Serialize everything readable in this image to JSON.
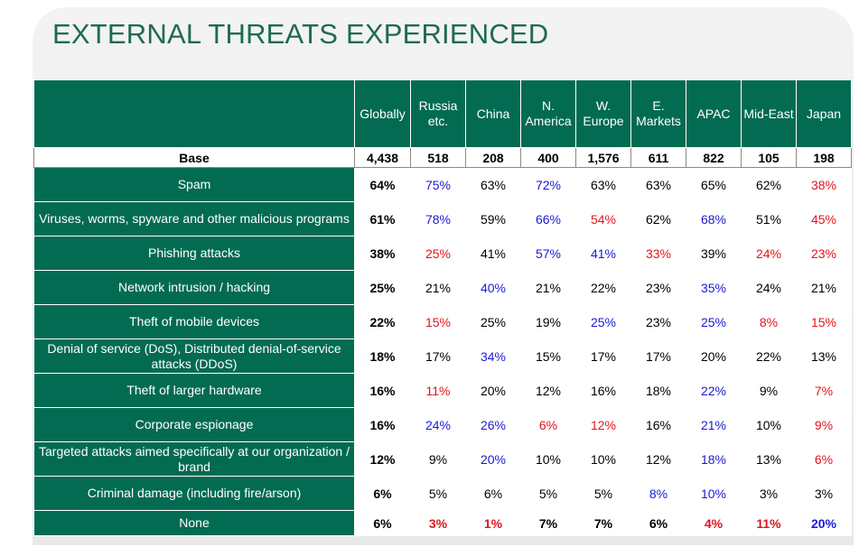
{
  "title": "EXTERNAL THREATS EXPERIENCED",
  "columns": [
    "Globally",
    "Russia etc.",
    "China",
    "N. America",
    "W. Europe",
    "E. Markets",
    "APAC",
    "Mid-East",
    "Japan"
  ],
  "base": {
    "label": "Base",
    "values": [
      "4,438",
      "518",
      "208",
      "400",
      "1,576",
      "611",
      "822",
      "105",
      "198"
    ]
  },
  "colors": {
    "header_green": "#036b52",
    "title_green": "#1f6b4c",
    "higher": "#1a1ad4",
    "lower": "#e3141b"
  },
  "chart_data": {
    "type": "table",
    "title": "EXTERNAL THREATS EXPERIENCED",
    "columns": [
      "Globally",
      "Russia etc.",
      "China",
      "N. America",
      "W. Europe",
      "E. Markets",
      "APAC",
      "Mid-East",
      "Japan"
    ],
    "base": [
      "4,438",
      "518",
      "208",
      "400",
      "1,576",
      "611",
      "822",
      "105",
      "198"
    ],
    "rows": [
      {
        "label": "Spam",
        "values": [
          "64%",
          "75%",
          "63%",
          "72%",
          "63%",
          "63%",
          "65%",
          "62%",
          "38%"
        ],
        "flags": [
          "",
          "hi",
          "",
          "hi",
          "",
          "",
          "",
          "",
          "lo"
        ]
      },
      {
        "label": "Viruses, worms, spyware and other malicious programs",
        "values": [
          "61%",
          "78%",
          "59%",
          "66%",
          "54%",
          "62%",
          "68%",
          "51%",
          "45%"
        ],
        "flags": [
          "",
          "hi",
          "",
          "hi",
          "lo",
          "",
          "hi",
          "",
          "lo"
        ]
      },
      {
        "label": "Phishing attacks",
        "values": [
          "38%",
          "25%",
          "41%",
          "57%",
          "41%",
          "33%",
          "39%",
          "24%",
          "23%"
        ],
        "flags": [
          "",
          "lo",
          "",
          "hi",
          "hi",
          "lo",
          "",
          "lo",
          "lo"
        ]
      },
      {
        "label": "Network intrusion / hacking",
        "values": [
          "25%",
          "21%",
          "40%",
          "21%",
          "22%",
          "23%",
          "35%",
          "24%",
          "21%"
        ],
        "flags": [
          "",
          "",
          "hi",
          "",
          "",
          "",
          "hi",
          "",
          ""
        ]
      },
      {
        "label": "Theft of mobile devices",
        "values": [
          "22%",
          "15%",
          "25%",
          "19%",
          "25%",
          "23%",
          "25%",
          "8%",
          "15%"
        ],
        "flags": [
          "",
          "lo",
          "",
          "",
          "hi",
          "",
          "hi",
          "lo",
          "lo"
        ]
      },
      {
        "label": "Denial of service (DoS), Distributed denial-of-service attacks (DDoS)",
        "values": [
          "18%",
          "17%",
          "34%",
          "15%",
          "17%",
          "17%",
          "20%",
          "22%",
          "13%"
        ],
        "flags": [
          "",
          "",
          "hi",
          "",
          "",
          "",
          "",
          "",
          ""
        ]
      },
      {
        "label": "Theft of larger hardware",
        "values": [
          "16%",
          "11%",
          "20%",
          "12%",
          "16%",
          "18%",
          "22%",
          "9%",
          "7%"
        ],
        "flags": [
          "",
          "lo",
          "",
          "",
          "",
          "",
          "hi",
          "",
          "lo"
        ]
      },
      {
        "label": "Corporate espionage",
        "values": [
          "16%",
          "24%",
          "26%",
          "6%",
          "12%",
          "16%",
          "21%",
          "10%",
          "9%"
        ],
        "flags": [
          "",
          "hi",
          "hi",
          "lo",
          "lo",
          "",
          "hi",
          "",
          "lo"
        ]
      },
      {
        "label": "Targeted attacks aimed specifically at our organization / brand",
        "values": [
          "12%",
          "9%",
          "20%",
          "10%",
          "10%",
          "12%",
          "18%",
          "13%",
          "6%"
        ],
        "flags": [
          "",
          "",
          "hi",
          "",
          "",
          "",
          "hi",
          "",
          "lo"
        ]
      },
      {
        "label": "Criminal damage (including fire/arson)",
        "values": [
          "6%",
          "5%",
          "6%",
          "5%",
          "5%",
          "8%",
          "10%",
          "3%",
          "3%"
        ],
        "flags": [
          "",
          "",
          "",
          "",
          "",
          "hi",
          "hi",
          "",
          ""
        ]
      },
      {
        "label": "None",
        "values": [
          "6%",
          "3%",
          "1%",
          "7%",
          "7%",
          "6%",
          "4%",
          "11%",
          "20%"
        ],
        "flags": [
          "",
          "lo",
          "lo",
          "",
          "",
          "",
          "lo",
          "lo",
          "hi"
        ]
      }
    ]
  }
}
